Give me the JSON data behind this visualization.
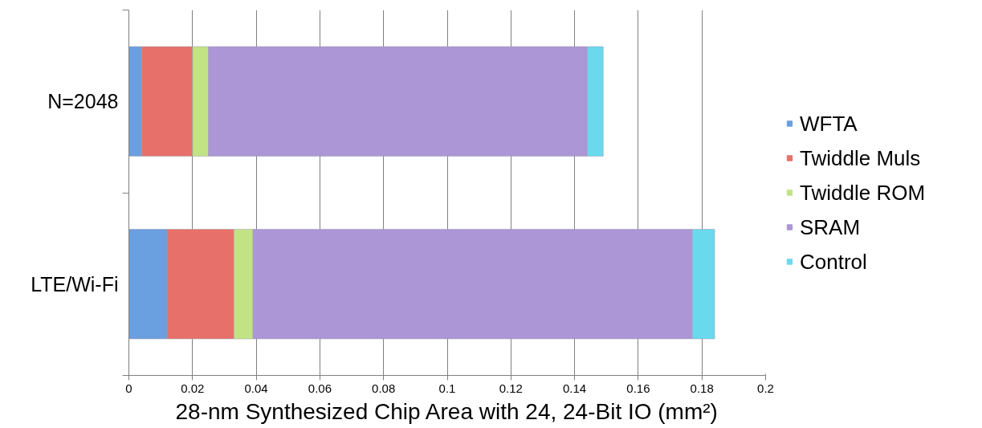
{
  "chart_data": {
    "type": "bar",
    "orientation": "horizontal",
    "stacked": true,
    "categories": [
      "N=2048",
      "LTE/Wi-Fi"
    ],
    "series": [
      {
        "name": "WFTA",
        "color": "#6a9fe0",
        "values": [
          0.004,
          0.012
        ]
      },
      {
        "name": "Twiddle Muls",
        "color": "#e8706a",
        "values": [
          0.016,
          0.021
        ]
      },
      {
        "name": "Twiddle ROM",
        "color": "#c2e384",
        "values": [
          0.005,
          0.006
        ]
      },
      {
        "name": "SRAM",
        "color": "#ac96d6",
        "values": [
          0.119,
          0.138
        ]
      },
      {
        "name": "Control",
        "color": "#6ad9ee",
        "values": [
          0.005,
          0.007
        ]
      }
    ],
    "xlabel": "28-nm Synthesized Chip Area with 24, 24-Bit IO (mm²)",
    "xlim": [
      0,
      0.2
    ],
    "xticks": [
      0,
      0.02,
      0.04,
      0.06,
      0.08,
      0.1,
      0.12,
      0.14,
      0.16,
      0.18,
      0.2
    ],
    "grid": "x",
    "legend": "right"
  }
}
